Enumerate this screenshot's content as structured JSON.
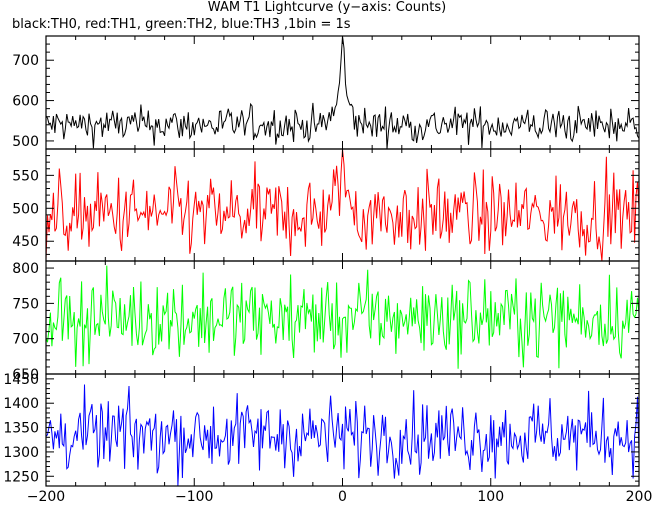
{
  "title": "WAM T1 Lightcurve (y−axis: Counts)",
  "subtitle": "black:TH0, red:TH1, green:TH2, blue:TH3 ,1bin = 1s",
  "colors": {
    "TH0": "#000000",
    "TH1": "#ff0000",
    "TH2": "#00ff00",
    "TH3": "#0000ff",
    "frame": "#000000"
  },
  "chart_data": {
    "type": "line",
    "x_range": [
      -200,
      200
    ],
    "x_ticks": [
      -200,
      -100,
      0,
      100,
      200
    ],
    "x_tick_labels": [
      "−200",
      "−100",
      "0",
      "100",
      "200"
    ],
    "panels": [
      {
        "series": "TH0",
        "color": "#000000",
        "ylim": [
          480,
          760
        ],
        "y_ticks": [
          500,
          600,
          700
        ],
        "y_tick_labels": [
          "500",
          "600",
          "700"
        ],
        "baseline": 540,
        "noise": 22,
        "peak": {
          "x": 0,
          "value": 760
        }
      },
      {
        "series": "TH1",
        "color": "#ff0000",
        "ylim": [
          420,
          590
        ],
        "y_ticks": [
          450,
          500,
          550
        ],
        "y_tick_labels": [
          "450",
          "500",
          "550"
        ],
        "baseline": 490,
        "noise": 30,
        "peak": {
          "x": 0,
          "value": 590
        }
      },
      {
        "series": "TH2",
        "color": "#00ff00",
        "ylim": [
          650,
          810
        ],
        "y_ticks": [
          650,
          700,
          750,
          800
        ],
        "y_tick_labels": [
          "650",
          "700",
          "750",
          "800"
        ],
        "baseline": 730,
        "noise": 28
      },
      {
        "series": "TH3",
        "color": "#0000ff",
        "ylim": [
          1230,
          1460
        ],
        "y_ticks": [
          1250,
          1300,
          1350,
          1400,
          1450
        ],
        "y_tick_labels": [
          "1250",
          "1300",
          "1350",
          "1400",
          "1450"
        ],
        "baseline": 1335,
        "noise": 38
      }
    ]
  }
}
